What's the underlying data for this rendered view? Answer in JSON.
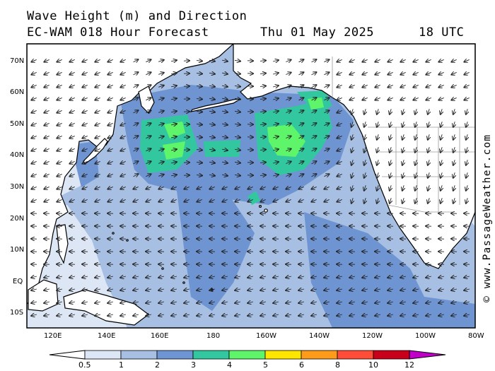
{
  "header": {
    "title": "Wave Height (m) and Direction",
    "model": "EC-WAM 018 Hour Forecast",
    "date": "Thu 01 May 2025",
    "time": "18 UTC"
  },
  "credit": "© www.PassageWeather.com",
  "axes": {
    "lat_labels": [
      "70N",
      "60N",
      "50N",
      "40N",
      "30N",
      "20N",
      "10N",
      "EQ",
      "10S"
    ],
    "lon_labels": [
      "120E",
      "140E",
      "160E",
      "180",
      "160W",
      "140W",
      "120W",
      "100W",
      "80W"
    ]
  },
  "legend": {
    "ticks": [
      "0.5",
      "1",
      "2",
      "3",
      "4",
      "5",
      "6",
      "8",
      "10",
      "12"
    ],
    "colors": [
      "#ffffff",
      "#dce6f5",
      "#a6bfe3",
      "#6f94d2",
      "#33c7a0",
      "#5ef56a",
      "#ffe600",
      "#ff9b1a",
      "#ff4d38",
      "#c8001a",
      "#c000c8"
    ]
  },
  "colors": {
    "land": "#ffffff",
    "coast": "#000000",
    "border": "#9a9a9a",
    "arrow": "#222222"
  }
}
